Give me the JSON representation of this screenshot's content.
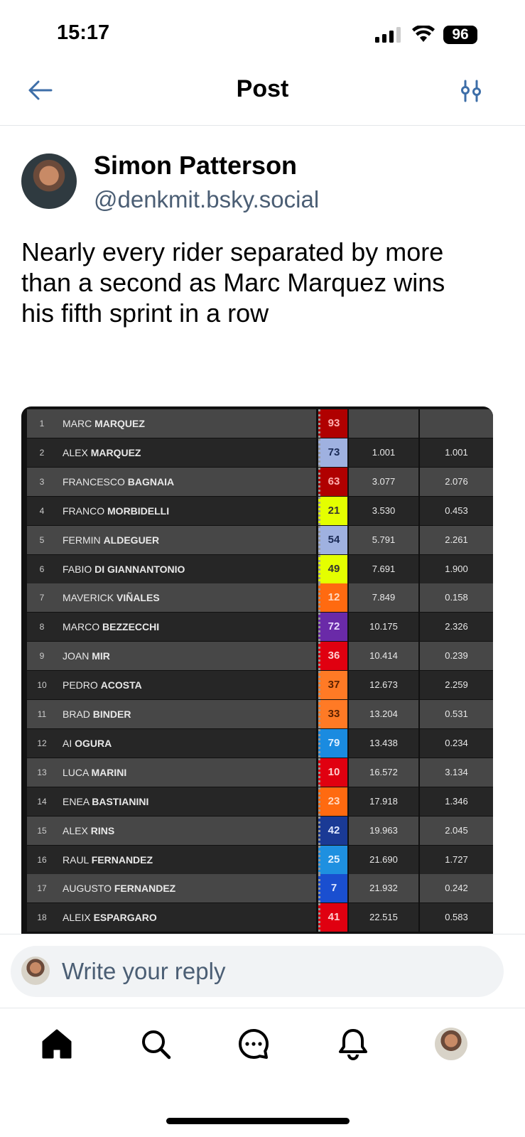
{
  "status": {
    "time": "15:17",
    "battery": "96"
  },
  "header": {
    "title": "Post"
  },
  "post": {
    "author_name": "Simon Patterson",
    "author_handle": "@denkmit.bsky.social",
    "text": "Nearly every rider separated by more than a second as Marc Marquez wins his fifth sprint in a row"
  },
  "results": [
    {
      "pos": "1",
      "first": "MARC",
      "last": "MARQUEZ",
      "num": "93",
      "color": "#b00000",
      "text": "#ffb0b0",
      "gap": "",
      "interval": ""
    },
    {
      "pos": "2",
      "first": "ALEX",
      "last": "MARQUEZ",
      "num": "73",
      "color": "#9fb1e0",
      "text": "#1a2a55",
      "gap": "1.001",
      "interval": "1.001"
    },
    {
      "pos": "3",
      "first": "FRANCESCO",
      "last": "BAGNAIA",
      "num": "63",
      "color": "#b00000",
      "text": "#ffb0b0",
      "gap": "3.077",
      "interval": "2.076"
    },
    {
      "pos": "4",
      "first": "FRANCO",
      "last": "MORBIDELLI",
      "num": "21",
      "color": "#e4ff00",
      "text": "#333",
      "gap": "3.530",
      "interval": "0.453"
    },
    {
      "pos": "5",
      "first": "FERMIN",
      "last": "ALDEGUER",
      "num": "54",
      "color": "#9fb1e0",
      "text": "#1a2a55",
      "gap": "5.791",
      "interval": "2.261"
    },
    {
      "pos": "6",
      "first": "FABIO",
      "last": "DI GIANNANTONIO",
      "num": "49",
      "color": "#e4ff00",
      "text": "#333",
      "gap": "7.691",
      "interval": "1.900"
    },
    {
      "pos": "7",
      "first": "MAVERICK",
      "last": "VIÑALES",
      "num": "12",
      "color": "#ff6a10",
      "text": "#ffd8c0",
      "gap": "7.849",
      "interval": "0.158"
    },
    {
      "pos": "8",
      "first": "MARCO",
      "last": "BEZZECCHI",
      "num": "72",
      "color": "#6a2aa8",
      "text": "#e8d8ff",
      "gap": "10.175",
      "interval": "2.326"
    },
    {
      "pos": "9",
      "first": "JOAN",
      "last": "MIR",
      "num": "36",
      "color": "#e00010",
      "text": "#ffd0d0",
      "gap": "10.414",
      "interval": "0.239"
    },
    {
      "pos": "10",
      "first": "PEDRO",
      "last": "ACOSTA",
      "num": "37",
      "color": "#ff7a25",
      "text": "#5a2000",
      "gap": "12.673",
      "interval": "2.259"
    },
    {
      "pos": "11",
      "first": "BRAD",
      "last": "BINDER",
      "num": "33",
      "color": "#ff7a25",
      "text": "#5a2000",
      "gap": "13.204",
      "interval": "0.531"
    },
    {
      "pos": "12",
      "first": "AI",
      "last": "OGURA",
      "num": "79",
      "color": "#1a8be0",
      "text": "#e0f0ff",
      "gap": "13.438",
      "interval": "0.234"
    },
    {
      "pos": "13",
      "first": "LUCA",
      "last": "MARINI",
      "num": "10",
      "color": "#e00010",
      "text": "#ffd0d0",
      "gap": "16.572",
      "interval": "3.134"
    },
    {
      "pos": "14",
      "first": "ENEA",
      "last": "BASTIANINI",
      "num": "23",
      "color": "#ff6a10",
      "text": "#ffd8c0",
      "gap": "17.918",
      "interval": "1.346"
    },
    {
      "pos": "15",
      "first": "ALEX",
      "last": "RINS",
      "num": "42",
      "color": "#1a3a95",
      "text": "#e0e8ff",
      "gap": "19.963",
      "interval": "2.045"
    },
    {
      "pos": "16",
      "first": "RAUL",
      "last": "FERNANDEZ",
      "num": "25",
      "color": "#1e90e0",
      "text": "#e0f0ff",
      "gap": "21.690",
      "interval": "1.727"
    },
    {
      "pos": "17",
      "first": "AUGUSTO",
      "last": "FERNANDEZ",
      "num": "7",
      "color": "#1a4fd0",
      "text": "#e0e8ff",
      "gap": "21.932",
      "interval": "0.242"
    },
    {
      "pos": "18",
      "first": "ALEIX",
      "last": "ESPARGARO",
      "num": "41",
      "color": "#e00010",
      "text": "#ffd0d0",
      "gap": "22.515",
      "interval": "0.583"
    }
  ],
  "composer": {
    "placeholder": "Write your reply"
  },
  "tabs": [
    {
      "icon": "home-icon"
    },
    {
      "icon": "search-icon"
    },
    {
      "icon": "chat-icon"
    },
    {
      "icon": "bell-icon"
    },
    {
      "icon": "profile-avatar"
    }
  ]
}
